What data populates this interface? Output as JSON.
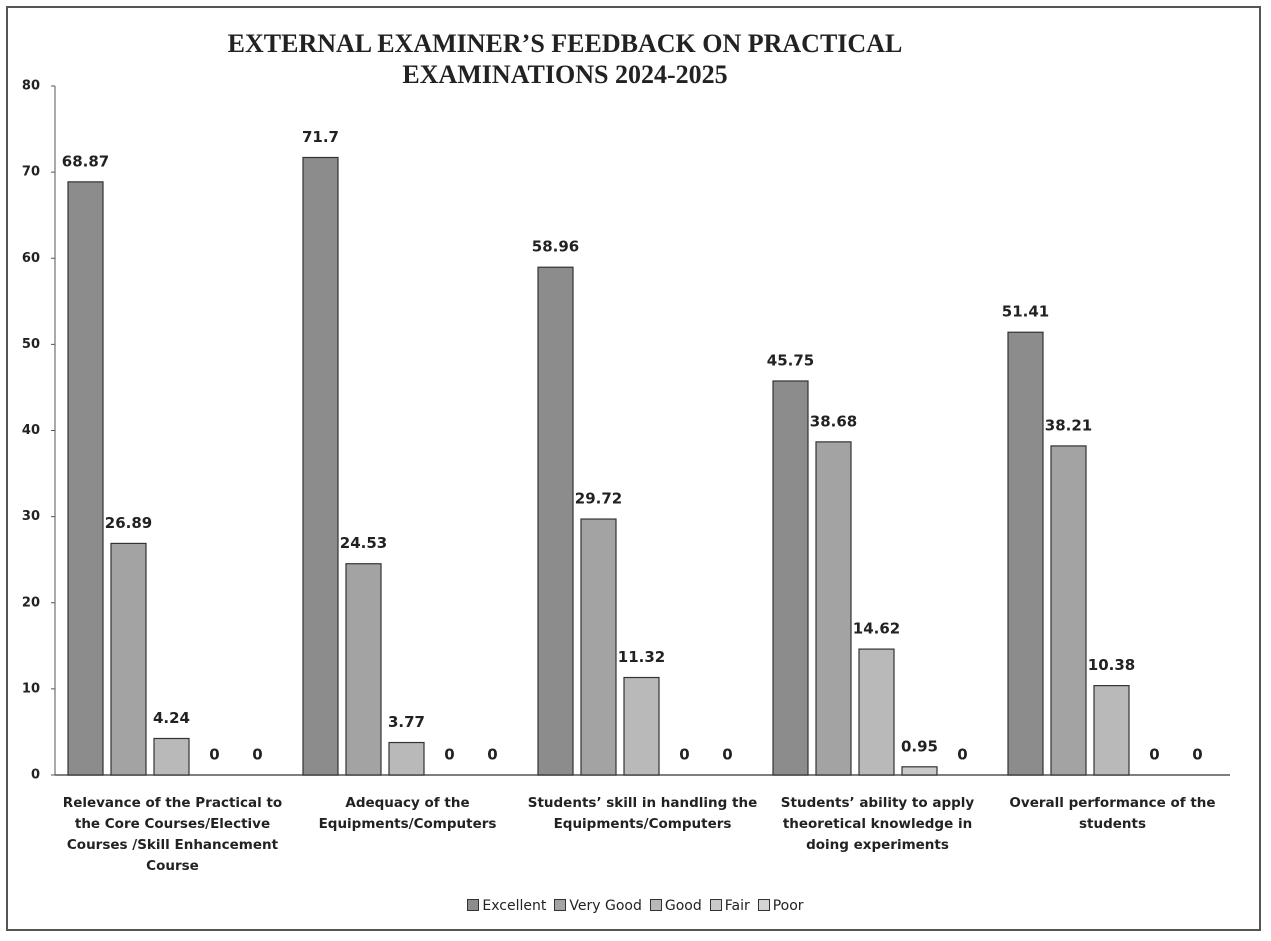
{
  "chart_data": {
    "type": "bar",
    "title": "EXTERNAL EXAMINER’S FEEDBACK ON PRACTICAL EXAMINATIONS 2024-2025",
    "categories": [
      "Relevance of the Practical to the Core Courses/Elective Courses /Skill Enhancement Course",
      "Adequacy of the Equipments/Computers",
      "Students’ skill in handling the Equipments/Computers",
      "Students’ ability to apply theoretical knowledge in doing experiments",
      "Overall performance of the students"
    ],
    "series": [
      {
        "name": "Excellent",
        "color": "#8c8c8c",
        "values": [
          68.87,
          71.7,
          58.96,
          45.75,
          51.41
        ]
      },
      {
        "name": "Very Good",
        "color": "#a3a3a3",
        "values": [
          26.89,
          24.53,
          29.72,
          38.68,
          38.21
        ]
      },
      {
        "name": "Good",
        "color": "#b9b9b9",
        "values": [
          4.24,
          3.77,
          11.32,
          14.62,
          10.38
        ]
      },
      {
        "name": "Fair",
        "color": "#c9c9c9",
        "values": [
          0,
          0,
          0,
          0.95,
          0
        ]
      },
      {
        "name": "Poor",
        "color": "#d4d4d4",
        "values": [
          0,
          0,
          0,
          0,
          0
        ]
      }
    ],
    "ylim": [
      0,
      80
    ],
    "yticks": [
      0,
      10,
      20,
      30,
      40,
      50,
      60,
      70,
      80
    ],
    "legend": "bottom"
  }
}
